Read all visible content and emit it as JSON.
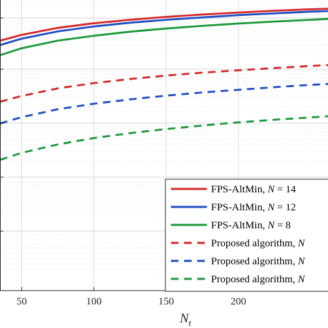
{
  "chart_data": {
    "type": "line",
    "xlabel_base": "N",
    "xlabel_sub": "t",
    "xlim": [
      35,
      262
    ],
    "ylim": [
      0,
      1
    ],
    "xticks": [
      "50",
      "100",
      "150",
      "200"
    ],
    "xtick_values": [
      50,
      100,
      150,
      200
    ],
    "grid": true,
    "minor_grid": true,
    "legend_position": "bottom-right",
    "series": [
      {
        "name": "FPS-AltMin, N = 14",
        "legend_prefix": "FPS-AltMin, ",
        "legend_var": "N",
        "legend_suffix": " = 14",
        "color": "#d62728",
        "dash": "solid",
        "x": [
          35,
          50,
          75,
          100,
          125,
          150,
          175,
          200,
          225,
          250,
          262
        ],
        "y": [
          0.86,
          0.88,
          0.904,
          0.92,
          0.932,
          0.942,
          0.95,
          0.957,
          0.963,
          0.968,
          0.97
        ]
      },
      {
        "name": "FPS-AltMin, N = 12",
        "legend_prefix": "FPS-AltMin, ",
        "legend_var": "N",
        "legend_suffix": " = 12",
        "color": "#1f4fc4",
        "dash": "solid",
        "x": [
          35,
          50,
          75,
          100,
          125,
          150,
          175,
          200,
          225,
          250,
          262
        ],
        "y": [
          0.845,
          0.867,
          0.892,
          0.909,
          0.922,
          0.932,
          0.94,
          0.948,
          0.954,
          0.96,
          0.962
        ]
      },
      {
        "name": "FPS-AltMin, N = 8",
        "legend_prefix": "FPS-AltMin, ",
        "legend_var": "N",
        "legend_suffix": " = 8",
        "color": "#1a9a3a",
        "dash": "solid",
        "x": [
          35,
          50,
          75,
          100,
          125,
          150,
          175,
          200,
          225,
          250,
          262
        ],
        "y": [
          0.81,
          0.834,
          0.86,
          0.877,
          0.891,
          0.902,
          0.911,
          0.919,
          0.926,
          0.932,
          0.935
        ]
      },
      {
        "name": "Proposed algorithm, N",
        "legend_prefix": "Proposed algorithm, ",
        "legend_var": "N",
        "legend_suffix": "",
        "color": "#d62728",
        "dash": "dashed",
        "x": [
          35,
          50,
          75,
          100,
          125,
          150,
          175,
          200,
          225,
          250,
          262
        ],
        "y": [
          0.65,
          0.67,
          0.696,
          0.714,
          0.728,
          0.74,
          0.75,
          0.758,
          0.766,
          0.773,
          0.776
        ]
      },
      {
        "name": "Proposed algorithm, N",
        "legend_prefix": "Proposed algorithm, ",
        "legend_var": "N",
        "legend_suffix": "",
        "color": "#1f4fc4",
        "dash": "dashed",
        "x": [
          35,
          50,
          75,
          100,
          125,
          150,
          175,
          200,
          225,
          250,
          262
        ],
        "y": [
          0.575,
          0.597,
          0.624,
          0.643,
          0.658,
          0.671,
          0.682,
          0.691,
          0.7,
          0.708,
          0.711
        ]
      },
      {
        "name": "Proposed algorithm, N",
        "legend_prefix": "Proposed algorithm, ",
        "legend_var": "N",
        "legend_suffix": "",
        "color": "#1a9a3a",
        "dash": "dashed",
        "x": [
          35,
          50,
          75,
          100,
          125,
          150,
          175,
          200,
          225,
          250,
          262
        ],
        "y": [
          0.45,
          0.474,
          0.503,
          0.525,
          0.542,
          0.556,
          0.568,
          0.579,
          0.588,
          0.596,
          0.6
        ]
      }
    ]
  }
}
